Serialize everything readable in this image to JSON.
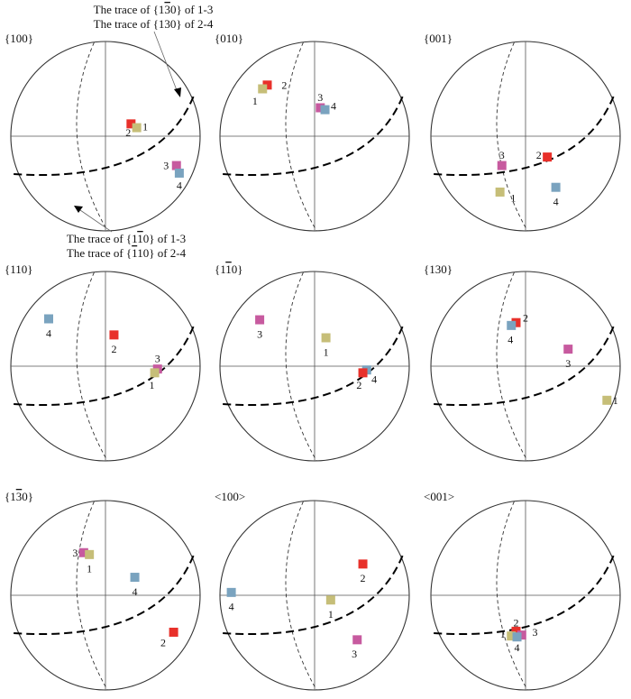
{
  "figure": {
    "colors": {
      "1": "#C6BE78",
      "2": "#E8302A",
      "3": "#C75A9F",
      "4": "#7AA3BF",
      "outline": "#333333",
      "thin_line": "#555555"
    },
    "top_annotation": {
      "line1": {
        "before": "The trace of {1",
        "overbar": "3",
        "after": "0} of 1-3"
      },
      "line2": "The trace of {130} of 2-4"
    },
    "bottom_annotation": {
      "line1": {
        "before": "The trace of {1",
        "overbar": "1",
        "after": "0} of 1-3"
      },
      "line2": {
        "before": "The trace of {",
        "overbar": "1",
        "after": "10} of 2-4"
      }
    },
    "panels": [
      {
        "label": {
          "before": "{100}",
          "overbar": "",
          "after": ""
        },
        "points": [
          {
            "id": "2",
            "x": 0.27,
            "y": 0.13,
            "label": "2",
            "lx": -0.03,
            "ly": -0.09
          },
          {
            "id": "1",
            "x": 0.33,
            "y": 0.09,
            "label": "1",
            "lx": 0.09,
            "ly": 0.01
          },
          {
            "id": "3",
            "x": 0.75,
            "y": -0.31,
            "label": "3",
            "lx": -0.11,
            "ly": 0.0
          },
          {
            "id": "4",
            "x": 0.78,
            "y": -0.39,
            "label": "4",
            "lx": 0.0,
            "ly": -0.13
          }
        ]
      },
      {
        "label": {
          "before": "{010}",
          "overbar": "",
          "after": ""
        },
        "points": [
          {
            "id": "2",
            "x": -0.5,
            "y": 0.54,
            "label": "2",
            "lx": 0.18,
            "ly": 0.0
          },
          {
            "id": "1",
            "x": -0.55,
            "y": 0.5,
            "label": "1",
            "lx": -0.08,
            "ly": -0.13
          },
          {
            "id": "3",
            "x": 0.06,
            "y": 0.3,
            "label": "3",
            "lx": 0.0,
            "ly": 0.11
          },
          {
            "id": "4",
            "x": 0.11,
            "y": 0.28,
            "label": "4",
            "lx": 0.09,
            "ly": 0.04
          }
        ]
      },
      {
        "label": {
          "before": "{001}",
          "overbar": "",
          "after": ""
        },
        "points": [
          {
            "id": "2",
            "x": 0.23,
            "y": -0.22,
            "label": "2",
            "lx": -0.09,
            "ly": 0.02
          },
          {
            "id": "3",
            "x": -0.25,
            "y": -0.31,
            "label": "3",
            "lx": 0.0,
            "ly": 0.11
          },
          {
            "id": "1",
            "x": -0.27,
            "y": -0.59,
            "label": "1",
            "lx": 0.14,
            "ly": -0.06
          },
          {
            "id": "4",
            "x": 0.32,
            "y": -0.54,
            "label": "4",
            "lx": 0.0,
            "ly": -0.15
          }
        ]
      },
      {
        "label": {
          "before": "{110}",
          "overbar": "",
          "after": ""
        },
        "points": [
          {
            "id": "4",
            "x": -0.6,
            "y": 0.5,
            "label": "4",
            "lx": 0.0,
            "ly": -0.15
          },
          {
            "id": "2",
            "x": 0.09,
            "y": 0.33,
            "label": "2",
            "lx": 0.0,
            "ly": -0.15
          },
          {
            "id": "3",
            "x": 0.55,
            "y": -0.03,
            "label": "3",
            "lx": 0.0,
            "ly": 0.11
          },
          {
            "id": "1",
            "x": 0.52,
            "y": -0.07,
            "label": "1",
            "lx": -0.03,
            "ly": -0.13
          }
        ]
      },
      {
        "label": {
          "before": "{1",
          "overbar": "1",
          "after": "0}"
        },
        "points": [
          {
            "id": "3",
            "x": -0.58,
            "y": 0.49,
            "label": "3",
            "lx": 0.0,
            "ly": -0.15
          },
          {
            "id": "1",
            "x": 0.12,
            "y": 0.3,
            "label": "1",
            "lx": 0.0,
            "ly": -0.15
          },
          {
            "id": "4",
            "x": 0.55,
            "y": -0.04,
            "label": "4",
            "lx": 0.08,
            "ly": -0.1
          },
          {
            "id": "2",
            "x": 0.51,
            "y": -0.07,
            "label": "2",
            "lx": -0.04,
            "ly": -0.13
          }
        ]
      },
      {
        "label": {
          "before": "{130}",
          "overbar": "",
          "after": ""
        },
        "points": [
          {
            "id": "2",
            "x": -0.1,
            "y": 0.46,
            "label": "2",
            "lx": 0.1,
            "ly": 0.05
          },
          {
            "id": "4",
            "x": -0.15,
            "y": 0.43,
            "label": "4",
            "lx": -0.01,
            "ly": -0.15
          },
          {
            "id": "3",
            "x": 0.45,
            "y": 0.18,
            "label": "3",
            "lx": 0.0,
            "ly": -0.15
          },
          {
            "id": "1",
            "x": 0.86,
            "y": -0.36,
            "label": "1",
            "lx": 0.09,
            "ly": 0.0
          }
        ]
      },
      {
        "label": {
          "before": "{1",
          "overbar": "3",
          "after": "0}"
        },
        "points": [
          {
            "id": "3",
            "x": -0.23,
            "y": 0.45,
            "label": "3",
            "lx": -0.09,
            "ly": 0.0
          },
          {
            "id": "1",
            "x": -0.17,
            "y": 0.43,
            "label": "1",
            "lx": 0.0,
            "ly": -0.15
          },
          {
            "id": "4",
            "x": 0.31,
            "y": 0.19,
            "label": "4",
            "lx": 0.0,
            "ly": -0.15
          },
          {
            "id": "2",
            "x": 0.72,
            "y": -0.39,
            "label": "2",
            "lx": -0.11,
            "ly": -0.11
          }
        ]
      },
      {
        "label": {
          "before": "<100>",
          "overbar": "",
          "after": ""
        },
        "points": [
          {
            "id": "2",
            "x": 0.51,
            "y": 0.33,
            "label": "2",
            "lx": 0.0,
            "ly": -0.15
          },
          {
            "id": "4",
            "x": -0.88,
            "y": 0.03,
            "label": "4",
            "lx": 0.0,
            "ly": -0.15
          },
          {
            "id": "1",
            "x": 0.17,
            "y": -0.05,
            "label": "1",
            "lx": 0.0,
            "ly": -0.15
          },
          {
            "id": "3",
            "x": 0.45,
            "y": -0.47,
            "label": "3",
            "lx": -0.03,
            "ly": -0.15
          }
        ]
      },
      {
        "label": {
          "before": "<001>",
          "overbar": "",
          "after": ""
        },
        "points": [
          {
            "id": "2",
            "x": -0.1,
            "y": -0.38,
            "label": "2",
            "lx": 0.0,
            "ly": 0.09
          },
          {
            "id": "3",
            "x": -0.04,
            "y": -0.42,
            "label": "3",
            "lx": 0.14,
            "ly": 0.03
          },
          {
            "id": "1",
            "x": -0.15,
            "y": -0.43,
            "label": "1",
            "lx": -0.09,
            "ly": 0.02
          },
          {
            "id": "4",
            "x": -0.09,
            "y": -0.44,
            "label": "4",
            "lx": 0.0,
            "ly": -0.11
          }
        ]
      }
    ]
  }
}
